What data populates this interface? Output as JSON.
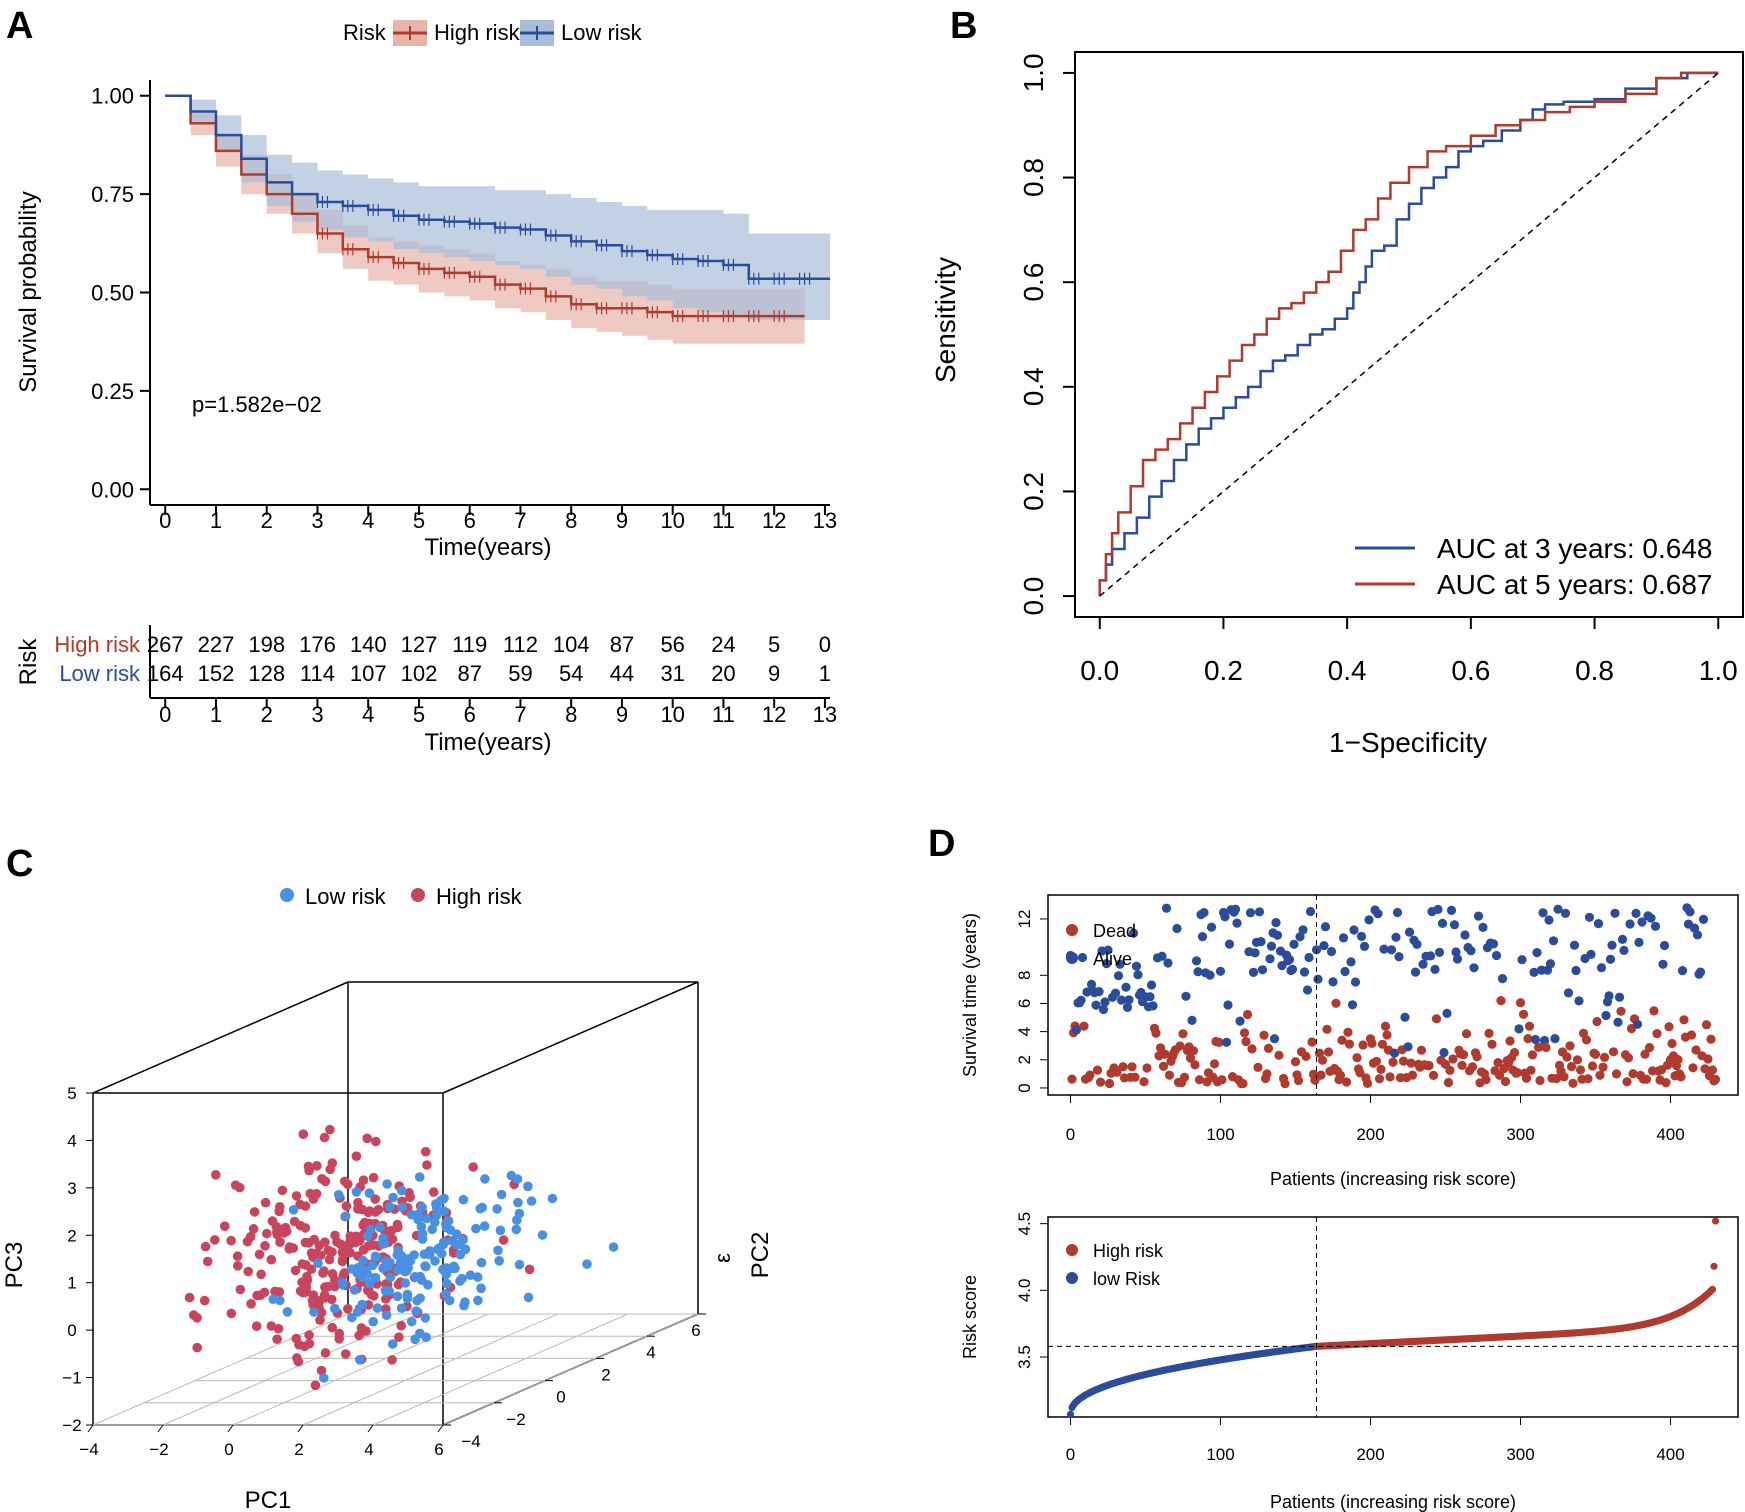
{
  "panels": {
    "A": {
      "letter": "A"
    },
    "B": {
      "letter": "B"
    },
    "C": {
      "letter": "C"
    },
    "D": {
      "letter": "D"
    }
  },
  "colors": {
    "high": "#B03A2E",
    "low": "#2B4C9B",
    "high_band": "#E8B4AA",
    "low_band": "#A9BDD9",
    "pca_low": "#4A90E2",
    "pca_high": "#C9455E"
  },
  "chart_data": [
    {
      "id": "A-km",
      "type": "line",
      "title": "",
      "legend": {
        "title": "Risk",
        "entries": [
          "High risk",
          "Low risk"
        ],
        "placement": "top"
      },
      "xlabel": "Time(years)",
      "ylabel": "Survival probability",
      "xlim": [
        -0.3,
        13.1
      ],
      "ylim": [
        -0.04,
        1.04
      ],
      "x_ticks": [
        "0",
        "1",
        "2",
        "3",
        "4",
        "5",
        "6",
        "7",
        "8",
        "9",
        "10",
        "11",
        "12",
        "13"
      ],
      "y_ticks": [
        "0.00",
        "0.25",
        "0.50",
        "0.75",
        "1.00"
      ],
      "annotation": "p=1.582e−02",
      "series": [
        {
          "name": "High risk",
          "x": [
            0,
            0.5,
            1,
            1.5,
            2,
            2.5,
            3,
            3.5,
            4,
            4.5,
            5,
            5.5,
            6,
            6.5,
            7,
            7.5,
            8,
            8.5,
            9,
            9.5,
            10,
            10.5,
            11,
            11.5,
            12,
            12.6
          ],
          "y": [
            1.0,
            0.93,
            0.86,
            0.8,
            0.75,
            0.7,
            0.65,
            0.61,
            0.59,
            0.575,
            0.56,
            0.55,
            0.54,
            0.52,
            0.51,
            0.49,
            0.47,
            0.46,
            0.46,
            0.45,
            0.44,
            0.44,
            0.44,
            0.44,
            0.44,
            0.44
          ],
          "lower": [
            1.0,
            0.9,
            0.82,
            0.75,
            0.7,
            0.65,
            0.6,
            0.56,
            0.53,
            0.52,
            0.5,
            0.49,
            0.48,
            0.46,
            0.45,
            0.43,
            0.41,
            0.4,
            0.39,
            0.38,
            0.37,
            0.37,
            0.37,
            0.37,
            0.37,
            0.37
          ],
          "upper": [
            1.0,
            0.96,
            0.9,
            0.85,
            0.8,
            0.75,
            0.71,
            0.67,
            0.64,
            0.63,
            0.62,
            0.61,
            0.6,
            0.58,
            0.57,
            0.56,
            0.54,
            0.53,
            0.53,
            0.52,
            0.51,
            0.51,
            0.51,
            0.51,
            0.51,
            0.51
          ]
        },
        {
          "name": "Low risk",
          "x": [
            0,
            0.5,
            1,
            1.5,
            2,
            2.5,
            3,
            3.5,
            4,
            4.5,
            5,
            5.5,
            6,
            6.5,
            7,
            7.5,
            8,
            8.5,
            9,
            9.5,
            10,
            10.5,
            11,
            11.5,
            12,
            12.5,
            13.1
          ],
          "y": [
            1.0,
            0.96,
            0.9,
            0.84,
            0.78,
            0.75,
            0.73,
            0.72,
            0.71,
            0.695,
            0.685,
            0.68,
            0.675,
            0.665,
            0.66,
            0.645,
            0.63,
            0.62,
            0.605,
            0.595,
            0.585,
            0.58,
            0.57,
            0.535,
            0.535,
            0.535,
            0.535
          ],
          "lower": [
            1.0,
            0.93,
            0.86,
            0.78,
            0.72,
            0.68,
            0.66,
            0.64,
            0.63,
            0.61,
            0.6,
            0.59,
            0.58,
            0.57,
            0.56,
            0.54,
            0.52,
            0.51,
            0.49,
            0.48,
            0.46,
            0.45,
            0.44,
            0.43,
            0.43,
            0.43,
            0.43
          ],
          "upper": [
            1.0,
            0.99,
            0.95,
            0.9,
            0.85,
            0.83,
            0.81,
            0.8,
            0.79,
            0.78,
            0.77,
            0.77,
            0.77,
            0.76,
            0.76,
            0.75,
            0.74,
            0.73,
            0.72,
            0.71,
            0.71,
            0.71,
            0.7,
            0.65,
            0.65,
            0.65,
            0.65
          ]
        }
      ],
      "risk_table": {
        "title": "Risk",
        "rows": [
          {
            "label": "High risk",
            "values": [
              "267",
              "227",
              "198",
              "176",
              "140",
              "127",
              "119",
              "112",
              "104",
              "87",
              "56",
              "24",
              "5",
              "0"
            ]
          },
          {
            "label": "Low risk",
            "values": [
              "164",
              "152",
              "128",
              "114",
              "107",
              "102",
              "87",
              "59",
              "54",
              "44",
              "31",
              "20",
              "9",
              "1"
            ]
          }
        ],
        "xlabel": "Time(years)",
        "x_ticks": [
          "0",
          "1",
          "2",
          "3",
          "4",
          "5",
          "6",
          "7",
          "8",
          "9",
          "10",
          "11",
          "12",
          "13"
        ]
      }
    },
    {
      "id": "B-roc",
      "type": "line",
      "title": "",
      "xlabel": "1−Specificity",
      "ylabel": "Sensitivity",
      "xlim": [
        -0.04,
        1.04
      ],
      "ylim": [
        -0.04,
        1.04
      ],
      "x_ticks": [
        "0.0",
        "0.2",
        "0.4",
        "0.6",
        "0.8",
        "1.0"
      ],
      "y_ticks": [
        "0.0",
        "0.2",
        "0.4",
        "0.6",
        "0.8",
        "1.0"
      ],
      "legend_entries": [
        "AUC at 3 years: 0.648",
        "AUC at 5 years: 0.687"
      ],
      "legend_placement": "bottom-right",
      "series": [
        {
          "name": "AUC at 3 years: 0.648",
          "x": [
            0,
            0.01,
            0.02,
            0.04,
            0.06,
            0.08,
            0.1,
            0.12,
            0.14,
            0.16,
            0.18,
            0.2,
            0.22,
            0.24,
            0.26,
            0.28,
            0.3,
            0.32,
            0.34,
            0.36,
            0.38,
            0.4,
            0.41,
            0.42,
            0.43,
            0.44,
            0.46,
            0.48,
            0.5,
            0.52,
            0.54,
            0.56,
            0.58,
            0.6,
            0.62,
            0.65,
            0.68,
            0.7,
            0.72,
            0.75,
            0.8,
            0.85,
            0.9,
            0.95,
            0.98,
            1.0
          ],
          "y": [
            0,
            0.03,
            0.06,
            0.09,
            0.12,
            0.15,
            0.19,
            0.22,
            0.26,
            0.29,
            0.32,
            0.34,
            0.36,
            0.38,
            0.4,
            0.43,
            0.45,
            0.46,
            0.48,
            0.5,
            0.51,
            0.53,
            0.55,
            0.58,
            0.6,
            0.63,
            0.66,
            0.67,
            0.72,
            0.75,
            0.78,
            0.8,
            0.82,
            0.85,
            0.86,
            0.87,
            0.89,
            0.91,
            0.93,
            0.94,
            0.945,
            0.95,
            0.97,
            0.99,
            1.0,
            1.0
          ]
        },
        {
          "name": "AUC at 5 years: 0.687",
          "x": [
            0,
            0.01,
            0.02,
            0.03,
            0.05,
            0.07,
            0.09,
            0.11,
            0.13,
            0.15,
            0.17,
            0.19,
            0.21,
            0.23,
            0.25,
            0.27,
            0.29,
            0.31,
            0.33,
            0.35,
            0.37,
            0.39,
            0.41,
            0.43,
            0.45,
            0.47,
            0.5,
            0.53,
            0.56,
            0.6,
            0.64,
            0.68,
            0.72,
            0.76,
            0.8,
            0.85,
            0.9,
            0.94,
            0.98,
            1.0
          ],
          "y": [
            0,
            0.03,
            0.08,
            0.12,
            0.16,
            0.21,
            0.26,
            0.28,
            0.3,
            0.33,
            0.36,
            0.39,
            0.42,
            0.45,
            0.48,
            0.5,
            0.53,
            0.55,
            0.56,
            0.58,
            0.6,
            0.62,
            0.66,
            0.7,
            0.72,
            0.76,
            0.79,
            0.82,
            0.85,
            0.86,
            0.88,
            0.9,
            0.91,
            0.925,
            0.935,
            0.945,
            0.96,
            0.99,
            1.0,
            1.0
          ]
        },
        {
          "name": "reference",
          "x": [
            0,
            1
          ],
          "y": [
            0,
            1
          ]
        }
      ]
    },
    {
      "id": "C-pca",
      "type": "scatter",
      "title": "",
      "legend_entries": [
        "Low risk",
        "High risk"
      ],
      "legend_placement": "top",
      "xlabel": "PC1",
      "ylabel": "PC3",
      "zlabel": "PC2",
      "pc1_ticks": [
        "−4",
        "−2",
        "0",
        "2",
        "4",
        "6"
      ],
      "pc3_ticks": [
        "−2",
        "−1",
        "0",
        "1",
        "2",
        "3",
        "4",
        "5"
      ],
      "pc2_ticks": [
        "−4",
        "−2",
        "0",
        "2",
        "4",
        "6"
      ],
      "pc2_extra_label": "ε",
      "n_low": 164,
      "n_high": 267
    },
    {
      "id": "D-time",
      "type": "scatter",
      "title": "",
      "legend_entries": [
        "Dead",
        "Alive"
      ],
      "legend_placement": "top-left",
      "xlabel": "Patients (increasing risk score)",
      "ylabel": "Survival time (years)",
      "xlim": [
        -15,
        445
      ],
      "ylim": [
        -0.5,
        13.7
      ],
      "x_ticks": [
        "0",
        "100",
        "200",
        "300",
        "400"
      ],
      "y_ticks": [
        "0",
        "2",
        "4",
        "6",
        "8",
        "12"
      ],
      "cutoff_patient": 164,
      "n_patients": 431
    },
    {
      "id": "D-score",
      "type": "scatter",
      "title": "",
      "legend_entries": [
        "High risk",
        "low Risk"
      ],
      "legend_placement": "top-left",
      "xlabel": "Patients (increasing risk score)",
      "ylabel": "Risk score",
      "xlim": [
        -15,
        445
      ],
      "ylim": [
        3.05,
        4.55
      ],
      "x_ticks": [
        "0",
        "100",
        "200",
        "300",
        "400"
      ],
      "y_ticks": [
        "3.5",
        "4.0",
        "4.5"
      ],
      "cutoff_patient": 164,
      "cutoff_score": 3.58,
      "n_patients": 431
    }
  ]
}
